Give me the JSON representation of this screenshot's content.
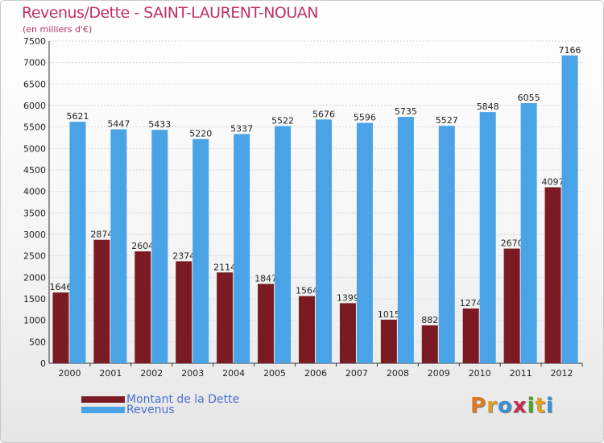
{
  "header": {
    "title": "Revenus/Dette - SAINT-LAURENT-NOUAN",
    "subtitle": "(en milliers d'€)"
  },
  "logo": {
    "text": "Proxiti",
    "letter_colors": [
      "#e07a1f",
      "#e0a020",
      "#3a8fd0",
      "#c03050",
      "#50a030",
      "#e0a020",
      "#3a8fd0"
    ]
  },
  "colors": {
    "dette": "#7a1a22",
    "revenus": "#4aa3e6",
    "title": "#c0306a"
  },
  "chart_data": {
    "type": "bar",
    "categories": [
      "2000",
      "2001",
      "2002",
      "2003",
      "2004",
      "2005",
      "2006",
      "2007",
      "2008",
      "2009",
      "2010",
      "2011",
      "2012"
    ],
    "series": [
      {
        "name": "Montant de la Dette",
        "values": [
          1646,
          2874,
          2604,
          2374,
          2114,
          1847,
          1564,
          1399,
          1015,
          882,
          1274,
          2670,
          4097
        ]
      },
      {
        "name": "Revenus",
        "values": [
          5621,
          5447,
          5433,
          5220,
          5337,
          5522,
          5676,
          5596,
          5735,
          5527,
          5848,
          6055,
          7166
        ]
      }
    ],
    "ylim": [
      0,
      7500
    ],
    "yticks": [
      "0",
      "500",
      "1000",
      "1500",
      "2000",
      "2500",
      "3000",
      "3500",
      "4000",
      "4500",
      "5000",
      "5500",
      "6000",
      "6500",
      "7000",
      "7500"
    ],
    "grid": true,
    "legend": "bottom-left"
  }
}
